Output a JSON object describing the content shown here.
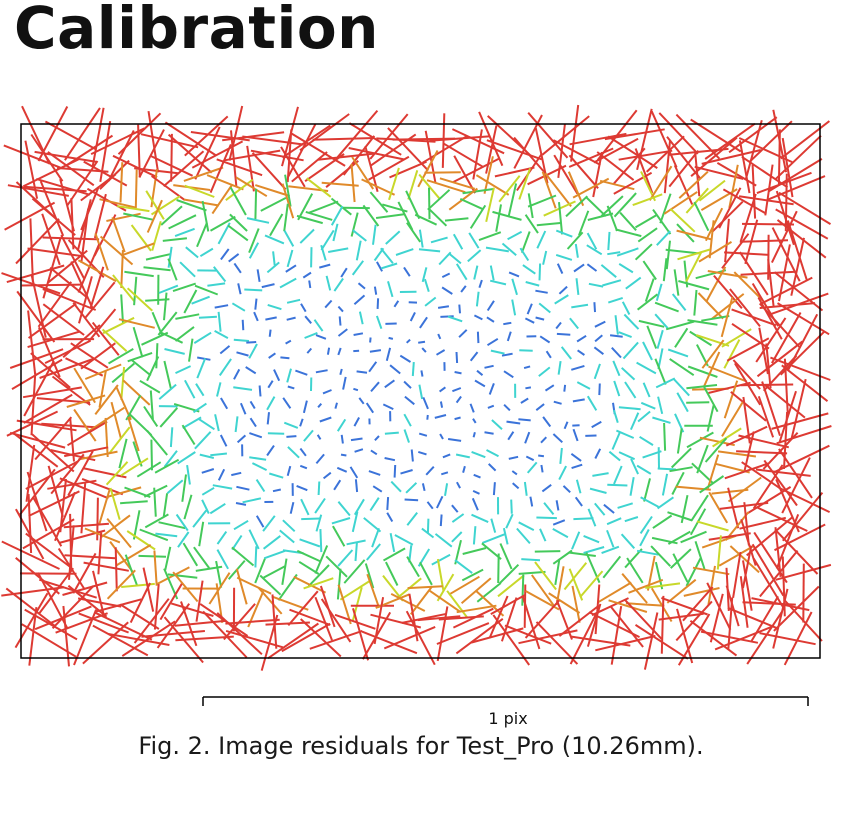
{
  "page": {
    "title": "Calibration",
    "caption": "Fig. 2. Image residuals for Test_Pro (10.26mm)."
  },
  "chart_data": {
    "type": "vector field",
    "title": "",
    "scale_bar": {
      "label": "1 pix",
      "value": 1,
      "unit": "pix"
    },
    "grid": false,
    "legend": "none",
    "color_scale": [
      "#3b73d9",
      "#3fd4d0",
      "#44c95a",
      "#c8d82a",
      "#e08a2a",
      "#dd3a33"
    ],
    "description_of_pattern": "residual vectors are small (blue/cyan) at the image center and grow larger (green, yellow, red) toward the edges and corners"
  }
}
